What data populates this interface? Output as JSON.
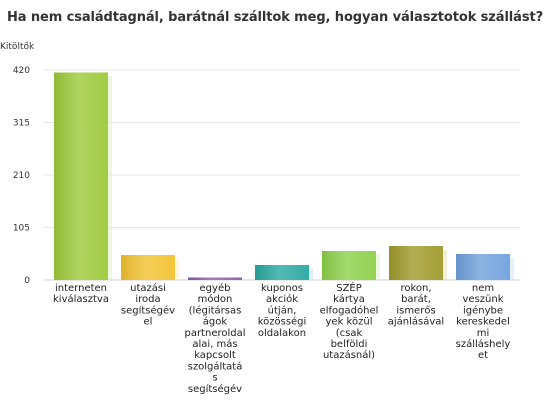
{
  "chart_data": {
    "type": "bar",
    "title": "Ha nem családtagnál, barátnál szálltok meg, hogyan választotok szállást?",
    "ylabel": "Kitöltők",
    "xlabel": "",
    "ylim": [
      0,
      420
    ],
    "yticks": [
      0,
      105,
      210,
      315,
      420
    ],
    "grid": true,
    "categories": [
      "interneten kiválasztva",
      "utazási iroda segítségével",
      "egyéb módon (légitársaságok partneroldalai, más kapcsolt szolgáltatás segítségév",
      "kuponos akciók útján, közösségi oldalakon",
      "SZÉP kártya elfogadóhelyek közül (csak belföldi utazásnál)",
      "rokon, barát, ismerős ajánlásával",
      "nem veszünk igénybe kereskedelmi szálláshelyet"
    ],
    "category_lines": [
      [
        "interneten",
        "kiválasztva"
      ],
      [
        "utazási",
        "iroda",
        "segítségév",
        "el"
      ],
      [
        "egyéb",
        "módon",
        "(légitársas",
        "ágok",
        "partneroldal",
        "alai, más",
        "kapcsolt",
        "szolgáltatá",
        "s",
        "segítségév"
      ],
      [
        "kuponos",
        "akciók",
        "útján,",
        "közösségi",
        "oldalakon"
      ],
      [
        "SZÉP",
        "kártya",
        "elfogadóhel",
        "yek közül",
        "(csak",
        "belföldi",
        "utazásnál)"
      ],
      [
        "rokon,",
        "barát,",
        "ismerős",
        "ajánlásával"
      ],
      [
        "nem",
        "veszünk",
        "igénybe",
        "kereskedel",
        "mi",
        "szálláshely",
        "et"
      ]
    ],
    "values": [
      415,
      50,
      5,
      30,
      58,
      68,
      52
    ],
    "colors": [
      "#9dc93a",
      "#f2c230",
      "#8b5ba8",
      "#28a8a0",
      "#8cd04a",
      "#a09a2a",
      "#6fa0dc"
    ]
  }
}
